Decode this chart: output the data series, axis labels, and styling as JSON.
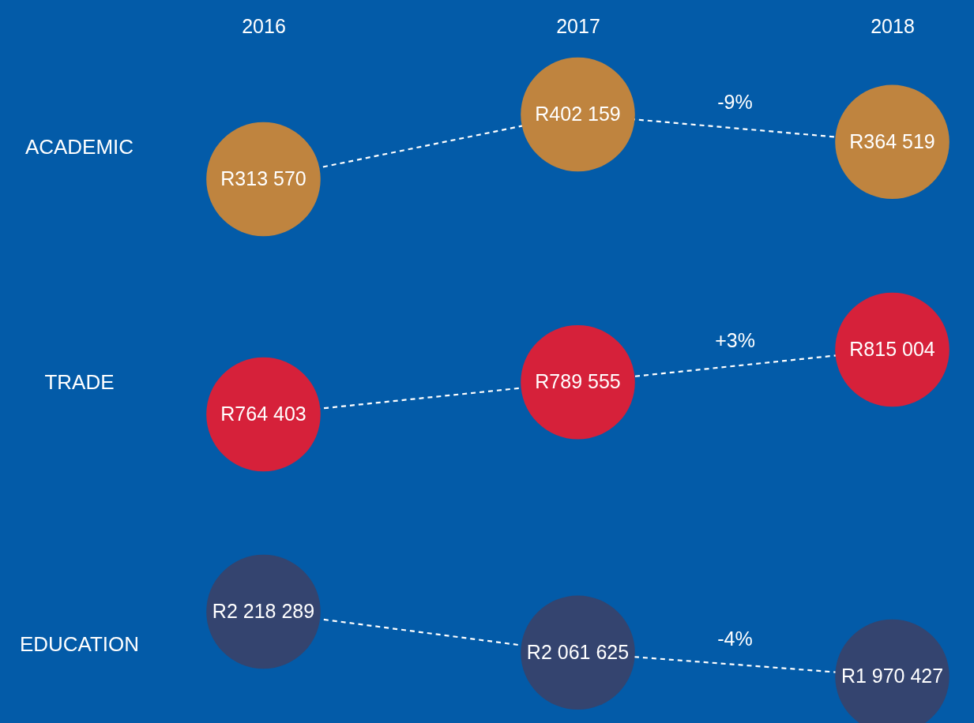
{
  "chart_data": [
    {
      "type": "line",
      "ylabel": "ACADEMIC",
      "categories": [
        "2016",
        "2017",
        "2018"
      ],
      "tick_labels": "x",
      "marker": "circle",
      "annotations": [
        "-9%"
      ],
      "series": [
        {
          "color": "#ffffff",
          "line_style": "dashed",
          "marker": "none",
          "values": [
            313570,
            402159,
            364519
          ]
        },
        {
          "type": "scatter",
          "color": "#bf843f",
          "values": [
            313570,
            402159,
            364519
          ],
          "value_labels": [
            "R313 570",
            "R402 159",
            "R364 519"
          ]
        }
      ]
    },
    {
      "type": "line",
      "ylabel": "TRADE",
      "categories": [
        "2016",
        "2017",
        "2018"
      ],
      "tick_labels": false,
      "marker": "circle",
      "annotations": [
        "+3%"
      ],
      "series": [
        {
          "color": "#ffffff",
          "line_style": "dashed",
          "marker": "none",
          "values": [
            764403,
            789555,
            815004
          ]
        },
        {
          "type": "scatter",
          "color": "#d6213a",
          "values": [
            764403,
            789555,
            815004
          ],
          "value_labels": [
            "R764 403",
            "R789 555",
            "R815 004"
          ]
        }
      ]
    },
    {
      "type": "line",
      "ylabel": "EDUCATION",
      "categories": [
        "2016",
        "2017",
        "2018"
      ],
      "tick_labels": false,
      "marker": "circle",
      "annotations": [
        "-4%"
      ],
      "series": [
        {
          "color": "#ffffff",
          "line_style": "dashed",
          "marker": "none",
          "values": [
            2218289,
            2061625,
            1970427
          ]
        },
        {
          "type": "scatter",
          "color": "#34446f",
          "values": [
            2218289,
            2061625,
            1970427
          ],
          "value_labels": [
            "R2 218 289",
            "R2 061 625",
            "R1 970 427"
          ]
        }
      ]
    }
  ]
}
